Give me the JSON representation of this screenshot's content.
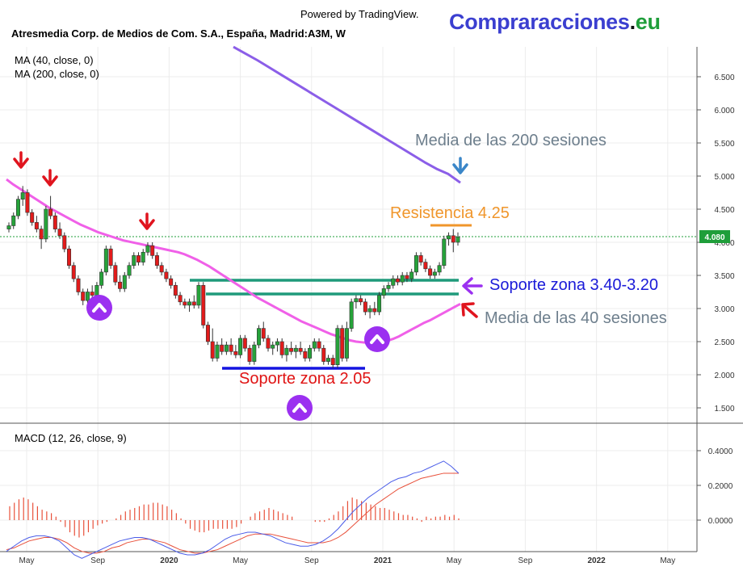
{
  "header": {
    "powered_by": "Powered by TradingView.",
    "brand_main": "Compraracciones",
    "brand_dot": ".",
    "brand_suffix": "eu",
    "symbol_title": "Atresmedia Corp. de Medios de Com. S.A., España, Madrid:A3M, W"
  },
  "indicators": {
    "ma40_label": "MA (40, close, 0)",
    "ma200_label": "MA (200, close, 0)",
    "macd_label": "MACD (12, 26, close, 9)"
  },
  "annotations": {
    "media200": "Media de las 200 sesiones",
    "resistencia": "Resistencia 4.25",
    "soporte_340": "Soporte zona 3.40-3.20",
    "media40": "Media de las 40 sesiones",
    "soporte_205": "Soporte zona 2.05"
  },
  "colors": {
    "up_candle": "#26a33a",
    "down_candle": "#e21b1b",
    "ma40": "#f060e8",
    "ma200": "#8b5ee8",
    "macd_line": "#4a5ce8",
    "signal_line": "#e8503a",
    "support_green": "#1f9a7a",
    "support_blue": "#1414e0",
    "resistance": "#f0962b",
    "arrow_red": "#e0141e",
    "arrow_blue": "#3a86c8",
    "arrow_purple": "#9b30f0",
    "price_tag": "#1f9e3a"
  },
  "chart_data": [
    {
      "type": "candlestick",
      "title": "Atresmedia Corp. de Medios de Com. S.A., España, Madrid:A3M, W",
      "timeframe": "W",
      "x_tick_labels": [
        "May",
        "Sep",
        "2020",
        "May",
        "Sep",
        "2021",
        "May",
        "Sep",
        "2022",
        "May"
      ],
      "x_range": [
        "2019-04",
        "2022-06"
      ],
      "y_tick_labels": [
        "1.500",
        "2.000",
        "2.500",
        "3.000",
        "3.500",
        "4.000",
        "4.500",
        "5.000",
        "5.500",
        "6.000",
        "6.500"
      ],
      "ylim": [
        1.2,
        6.95
      ],
      "grid": true,
      "last_price": 4.08,
      "last_price_label": "4.080",
      "ohlc": [
        [
          4.2,
          4.3,
          4.15,
          4.25
        ],
        [
          4.25,
          4.45,
          4.2,
          4.4
        ],
        [
          4.4,
          4.7,
          4.35,
          4.65
        ],
        [
          4.65,
          4.85,
          4.55,
          4.75
        ],
        [
          4.75,
          4.8,
          4.4,
          4.45
        ],
        [
          4.45,
          4.5,
          4.25,
          4.3
        ],
        [
          4.3,
          4.4,
          4.15,
          4.2
        ],
        [
          4.2,
          4.25,
          3.9,
          4.05
        ],
        [
          4.05,
          4.55,
          4.0,
          4.5
        ],
        [
          4.5,
          4.7,
          4.35,
          4.4
        ],
        [
          4.4,
          4.45,
          4.15,
          4.2
        ],
        [
          4.2,
          4.3,
          4.05,
          4.1
        ],
        [
          4.1,
          4.15,
          3.85,
          3.9
        ],
        [
          3.9,
          3.95,
          3.6,
          3.65
        ],
        [
          3.65,
          3.7,
          3.4,
          3.45
        ],
        [
          3.45,
          3.5,
          3.2,
          3.25
        ],
        [
          3.25,
          3.3,
          3.05,
          3.12
        ],
        [
          3.12,
          3.3,
          3.08,
          3.25
        ],
        [
          3.25,
          3.35,
          3.15,
          3.2
        ],
        [
          3.2,
          3.4,
          3.15,
          3.35
        ],
        [
          3.35,
          3.6,
          3.3,
          3.55
        ],
        [
          3.55,
          3.95,
          3.5,
          3.9
        ],
        [
          3.9,
          3.95,
          3.6,
          3.65
        ],
        [
          3.65,
          3.7,
          3.35,
          3.4
        ],
        [
          3.4,
          3.5,
          3.25,
          3.3
        ],
        [
          3.3,
          3.55,
          3.25,
          3.5
        ],
        [
          3.5,
          3.7,
          3.45,
          3.65
        ],
        [
          3.65,
          3.85,
          3.6,
          3.8
        ],
        [
          3.8,
          3.85,
          3.65,
          3.7
        ],
        [
          3.7,
          3.9,
          3.65,
          3.85
        ],
        [
          3.85,
          4.0,
          3.8,
          3.95
        ],
        [
          3.95,
          4.0,
          3.75,
          3.8
        ],
        [
          3.8,
          3.85,
          3.6,
          3.65
        ],
        [
          3.65,
          3.7,
          3.5,
          3.55
        ],
        [
          3.55,
          3.6,
          3.4,
          3.45
        ],
        [
          3.45,
          3.5,
          3.3,
          3.35
        ],
        [
          3.35,
          3.4,
          3.15,
          3.2
        ],
        [
          3.2,
          3.25,
          3.05,
          3.1
        ],
        [
          3.1,
          3.15,
          3.0,
          3.05
        ],
        [
          3.05,
          3.15,
          2.95,
          3.1
        ],
        [
          3.1,
          3.2,
          3.0,
          3.05
        ],
        [
          3.05,
          3.4,
          3.0,
          3.35
        ],
        [
          3.35,
          3.4,
          2.7,
          2.75
        ],
        [
          2.75,
          2.8,
          2.45,
          2.5
        ],
        [
          2.5,
          2.7,
          2.2,
          2.25
        ],
        [
          2.25,
          2.5,
          2.2,
          2.45
        ],
        [
          2.45,
          2.55,
          2.3,
          2.35
        ],
        [
          2.35,
          2.5,
          2.3,
          2.45
        ],
        [
          2.45,
          2.55,
          2.3,
          2.35
        ],
        [
          2.35,
          2.45,
          2.25,
          2.3
        ],
        [
          2.3,
          2.6,
          2.25,
          2.55
        ],
        [
          2.55,
          2.6,
          2.35,
          2.4
        ],
        [
          2.4,
          2.45,
          2.15,
          2.2
        ],
        [
          2.2,
          2.5,
          2.15,
          2.45
        ],
        [
          2.45,
          2.75,
          2.4,
          2.7
        ],
        [
          2.7,
          2.8,
          2.5,
          2.55
        ],
        [
          2.55,
          2.6,
          2.35,
          2.4
        ],
        [
          2.4,
          2.5,
          2.3,
          2.45
        ],
        [
          2.45,
          2.55,
          2.35,
          2.5
        ],
        [
          2.5,
          2.55,
          2.25,
          2.3
        ],
        [
          2.3,
          2.45,
          2.2,
          2.4
        ],
        [
          2.4,
          2.5,
          2.3,
          2.35
        ],
        [
          2.35,
          2.45,
          2.25,
          2.4
        ],
        [
          2.4,
          2.5,
          2.3,
          2.35
        ],
        [
          2.35,
          2.4,
          2.2,
          2.25
        ],
        [
          2.25,
          2.45,
          2.2,
          2.4
        ],
        [
          2.4,
          2.55,
          2.35,
          2.5
        ],
        [
          2.5,
          2.55,
          2.35,
          2.4
        ],
        [
          2.4,
          2.45,
          2.15,
          2.2
        ],
        [
          2.2,
          2.3,
          2.15,
          2.25
        ],
        [
          2.25,
          2.3,
          2.1,
          2.15
        ],
        [
          2.15,
          2.75,
          2.1,
          2.7
        ],
        [
          2.7,
          2.75,
          2.2,
          2.25
        ],
        [
          2.25,
          2.8,
          2.2,
          2.7
        ],
        [
          2.7,
          3.15,
          2.65,
          3.1
        ],
        [
          3.1,
          3.2,
          3.0,
          3.15
        ],
        [
          3.15,
          3.2,
          3.05,
          3.1
        ],
        [
          3.1,
          3.15,
          2.9,
          2.95
        ],
        [
          2.95,
          3.05,
          2.85,
          3.0
        ],
        [
          3.0,
          3.1,
          2.9,
          2.95
        ],
        [
          2.95,
          3.25,
          2.9,
          3.2
        ],
        [
          3.2,
          3.35,
          3.15,
          3.3
        ],
        [
          3.3,
          3.4,
          3.25,
          3.35
        ],
        [
          3.35,
          3.5,
          3.3,
          3.45
        ],
        [
          3.45,
          3.5,
          3.35,
          3.4
        ],
        [
          3.4,
          3.55,
          3.35,
          3.5
        ],
        [
          3.5,
          3.55,
          3.4,
          3.45
        ],
        [
          3.45,
          3.6,
          3.4,
          3.55
        ],
        [
          3.55,
          3.85,
          3.5,
          3.8
        ],
        [
          3.8,
          3.85,
          3.65,
          3.7
        ],
        [
          3.7,
          3.75,
          3.55,
          3.6
        ],
        [
          3.6,
          3.65,
          3.45,
          3.5
        ],
        [
          3.5,
          3.6,
          3.45,
          3.55
        ],
        [
          3.55,
          3.7,
          3.5,
          3.65
        ],
        [
          3.65,
          4.1,
          3.6,
          4.05
        ],
        [
          4.05,
          4.15,
          3.95,
          4.1
        ],
        [
          4.1,
          4.2,
          3.85,
          4.0
        ],
        [
          4.0,
          4.15,
          3.95,
          4.08
        ]
      ],
      "series": [
        {
          "name": "MA (40, close, 0)",
          "values": [
            4.95,
            4.88,
            4.82,
            4.76,
            4.7,
            4.64,
            4.58,
            4.52,
            4.47,
            4.42,
            4.37,
            4.32,
            4.27,
            4.23,
            4.19,
            4.15,
            4.12,
            4.09,
            4.06,
            4.03,
            4.01,
            3.99,
            3.97,
            3.95,
            3.93,
            3.91,
            3.89,
            3.87,
            3.85,
            3.82,
            3.78,
            3.74,
            3.69,
            3.64,
            3.58,
            3.52,
            3.46,
            3.4,
            3.34,
            3.28,
            3.22,
            3.16,
            3.11,
            3.06,
            3.01,
            2.96,
            2.91,
            2.86,
            2.81,
            2.77,
            2.73,
            2.69,
            2.65,
            2.61,
            2.58,
            2.55,
            2.52,
            2.5,
            2.49,
            2.48,
            2.48,
            2.49,
            2.51,
            2.54,
            2.58,
            2.63,
            2.68,
            2.73,
            2.78,
            2.82,
            2.87,
            2.92,
            2.97,
            3.02,
            3.07
          ]
        },
        {
          "name": "MA (200, close, 0)",
          "values": [
            6.95,
            6.85,
            6.75,
            6.64,
            6.53,
            6.42,
            6.31,
            6.2,
            6.09,
            5.98,
            5.87,
            5.76,
            5.65,
            5.54,
            5.43,
            5.32,
            5.21,
            5.11,
            5.03,
            4.9
          ]
        }
      ],
      "annotations": [
        "Media de las 200 sesiones",
        "Resistencia 4.25",
        "Soporte zona 3.40-3.20",
        "Media de las 40 sesiones",
        "Soporte zona 2.05"
      ],
      "levels": {
        "resistencia": 4.25,
        "soporte_alto": 3.4,
        "soporte_bajo": 3.2,
        "soporte_min": 2.05
      }
    },
    {
      "type": "line",
      "title": "MACD (12, 26, close, 9)",
      "y_tick_labels": [
        "0.0000",
        "0.2000",
        "0.4000"
      ],
      "ylim": [
        -0.2,
        0.45
      ],
      "grid": true,
      "series": [
        {
          "name": "MACD",
          "values": [
            -0.18,
            -0.15,
            -0.12,
            -0.1,
            -0.09,
            -0.09,
            -0.1,
            -0.12,
            -0.16,
            -0.2,
            -0.22,
            -0.2,
            -0.18,
            -0.16,
            -0.14,
            -0.12,
            -0.11,
            -0.1,
            -0.1,
            -0.11,
            -0.13,
            -0.15,
            -0.17,
            -0.19,
            -0.2,
            -0.2,
            -0.19,
            -0.17,
            -0.14,
            -0.11,
            -0.09,
            -0.08,
            -0.07,
            -0.07,
            -0.08,
            -0.09,
            -0.11,
            -0.13,
            -0.14,
            -0.15,
            -0.15,
            -0.14,
            -0.12,
            -0.09,
            -0.05,
            0.0,
            0.05,
            0.09,
            0.13,
            0.16,
            0.19,
            0.22,
            0.24,
            0.25,
            0.27,
            0.28,
            0.3,
            0.32,
            0.34,
            0.31,
            0.27
          ]
        },
        {
          "name": "Signal",
          "values": [
            -0.17,
            -0.16,
            -0.14,
            -0.12,
            -0.11,
            -0.1,
            -0.1,
            -0.11,
            -0.13,
            -0.16,
            -0.18,
            -0.19,
            -0.19,
            -0.18,
            -0.16,
            -0.15,
            -0.13,
            -0.12,
            -0.11,
            -0.11,
            -0.12,
            -0.13,
            -0.15,
            -0.17,
            -0.18,
            -0.19,
            -0.19,
            -0.18,
            -0.17,
            -0.15,
            -0.13,
            -0.11,
            -0.09,
            -0.08,
            -0.08,
            -0.08,
            -0.09,
            -0.1,
            -0.11,
            -0.12,
            -0.13,
            -0.13,
            -0.13,
            -0.12,
            -0.1,
            -0.07,
            -0.03,
            0.01,
            0.05,
            0.09,
            0.12,
            0.15,
            0.18,
            0.2,
            0.22,
            0.24,
            0.25,
            0.26,
            0.27,
            0.27,
            0.27
          ]
        },
        {
          "name": "Histogram",
          "values": [
            0.08,
            0.1,
            0.12,
            0.13,
            0.12,
            0.1,
            0.08,
            0.06,
            0.05,
            0.04,
            0.02,
            -0.01,
            -0.04,
            -0.07,
            -0.09,
            -0.1,
            -0.09,
            -0.07,
            -0.05,
            -0.03,
            -0.02,
            -0.01,
            0.0,
            0.01,
            0.03,
            0.05,
            0.06,
            0.07,
            0.08,
            0.09,
            0.09,
            0.1,
            0.1,
            0.09,
            0.08,
            0.06,
            0.04,
            0.01,
            -0.02,
            -0.05,
            -0.06,
            -0.07,
            -0.07,
            -0.06,
            -0.05,
            -0.05,
            -0.05,
            -0.05,
            -0.05,
            -0.04,
            -0.02,
            0.0,
            0.02,
            0.04,
            0.05,
            0.06,
            0.07,
            0.06,
            0.05,
            0.04,
            0.03,
            0.02,
            0.0,
            0.0,
            0.0,
            0.0,
            -0.01,
            -0.01,
            -0.01,
            0.01,
            0.03,
            0.05,
            0.08,
            0.11,
            0.13,
            0.12,
            0.11,
            0.1,
            0.09,
            0.08,
            0.07,
            0.07,
            0.06,
            0.05,
            0.04,
            0.03,
            0.03,
            0.02,
            0.01,
            -0.01,
            0.02,
            0.01,
            0.02,
            0.02,
            0.03,
            0.02,
            0.03,
            0.01
          ]
        }
      ]
    }
  ]
}
